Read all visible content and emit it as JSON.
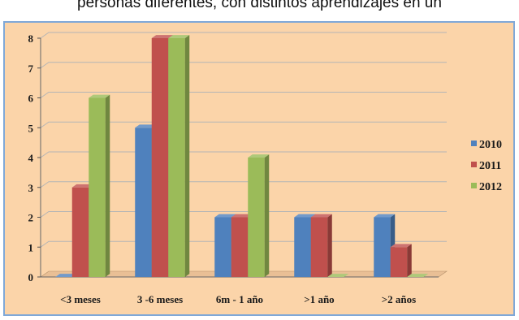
{
  "caption": "personas diferentes, con distintos aprendizajes en un",
  "colors": {
    "2010": "#4f81bd",
    "2011": "#c0504d",
    "2012": "#9bbb59"
  },
  "chart_data": {
    "type": "bar",
    "categories": [
      "<3 meses",
      "3 -6 meses",
      "6m - 1 año",
      ">1 año",
      ">2 años"
    ],
    "series": [
      {
        "name": "2010",
        "values": [
          0,
          5,
          2,
          2,
          2
        ]
      },
      {
        "name": "2011",
        "values": [
          3,
          8,
          2,
          2,
          1
        ]
      },
      {
        "name": "2012",
        "values": [
          6,
          8,
          4,
          0,
          0
        ]
      }
    ],
    "yticks": [
      "0",
      "1",
      "2",
      "3",
      "4",
      "5",
      "6",
      "7",
      "8"
    ],
    "ylim": [
      0,
      8
    ],
    "grid": true,
    "legend": "right",
    "title": "",
    "xlabel": "",
    "ylabel": ""
  }
}
